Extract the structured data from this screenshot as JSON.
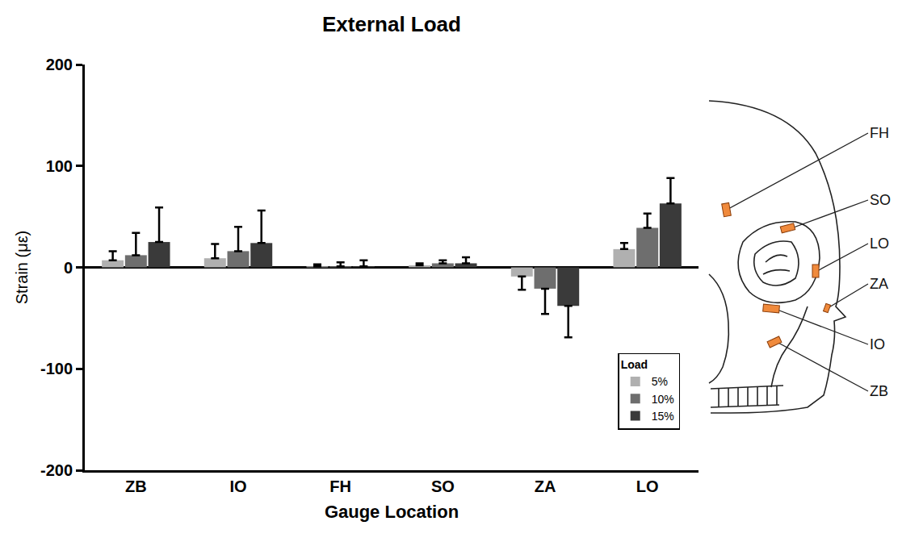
{
  "chart_data": {
    "type": "bar",
    "title": "External Load",
    "x_label": "Gauge Location",
    "y_label": "Strain (με)",
    "categories": [
      "ZB",
      "IO",
      "FH",
      "SO",
      "ZA",
      "LO"
    ],
    "series": [
      {
        "name": "5%",
        "color": "#b0b0b0",
        "values": [
          7,
          9,
          1,
          2,
          -9,
          18
        ],
        "errors": [
          9,
          14,
          2,
          2,
          13,
          6
        ]
      },
      {
        "name": "10%",
        "color": "#6e6e6e",
        "values": [
          12,
          16,
          1,
          4,
          -21,
          39
        ],
        "errors": [
          22,
          24,
          4,
          3,
          25,
          14
        ]
      },
      {
        "name": "15%",
        "color": "#3a3a3a",
        "values": [
          25,
          24,
          1,
          4,
          -38,
          63
        ],
        "errors": [
          34,
          32,
          6,
          6,
          31,
          25
        ]
      }
    ],
    "ylim": [
      -200,
      200
    ],
    "yticks": [
      -200,
      -100,
      0,
      100,
      200
    ],
    "grid": false,
    "legend": "lower right",
    "legend_title": "Load",
    "annotations": [
      "FH",
      "SO",
      "LO",
      "ZA",
      "IO",
      "ZB"
    ]
  }
}
